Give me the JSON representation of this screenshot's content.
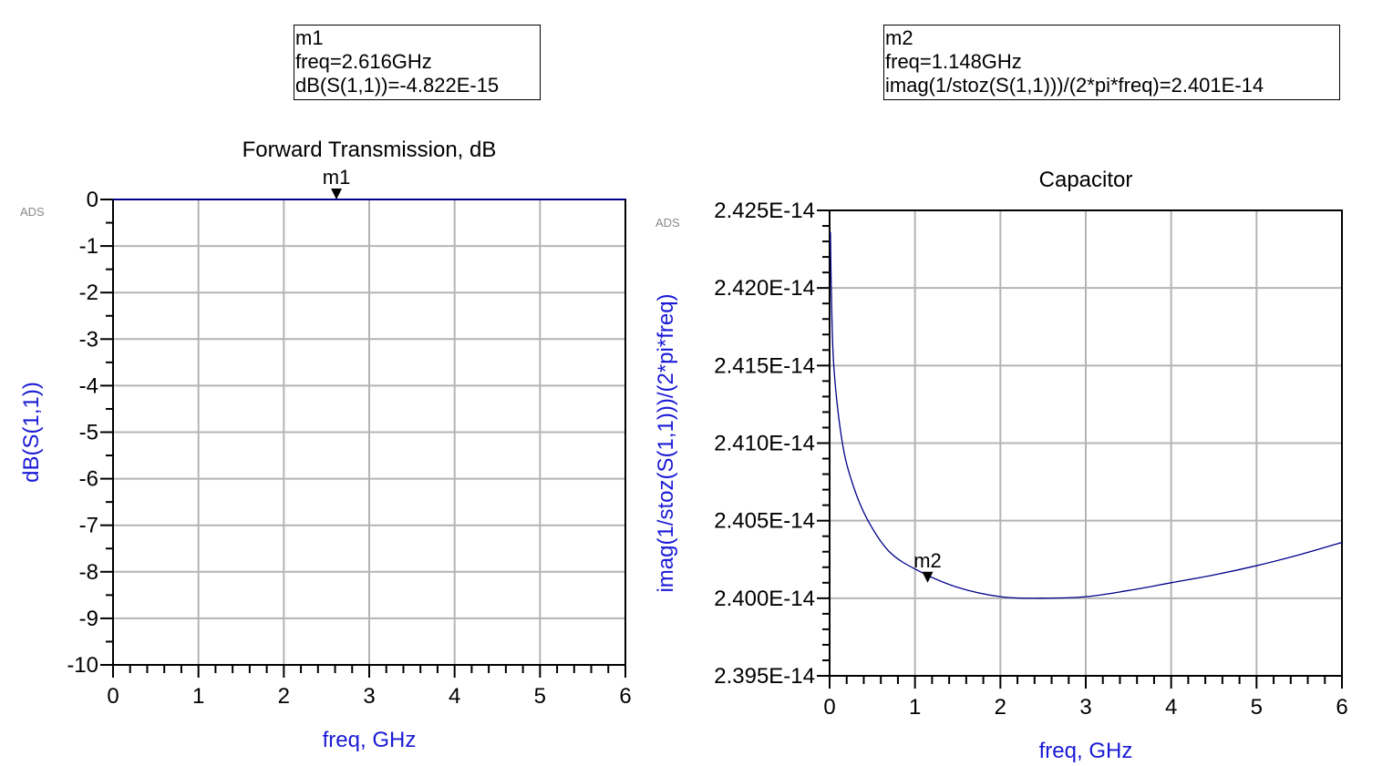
{
  "watermark": "ADS",
  "markers": [
    {
      "name": "m1",
      "lines": [
        "m1",
        "freq=2.616GHz",
        "dB(S(1,1))=-4.822E-15"
      ],
      "freq": 2.616,
      "value": -4.822e-15
    },
    {
      "name": "m2",
      "lines": [
        "m2",
        "freq=1.148GHz",
        "imag(1/stoz(S(1,1)))/(2*pi*freq)=2.401E-14"
      ],
      "freq": 1.148,
      "value": 2.401e-14
    }
  ],
  "colors": {
    "trace": "#00008b",
    "axis_label": "#1a1ad6",
    "grid": "#b4b4b4"
  },
  "chart_data": [
    {
      "type": "line",
      "title": "Forward Transmission, dB",
      "xlabel": "freq, GHz",
      "ylabel": "dB(S(1,1))",
      "xlim": [
        0,
        6
      ],
      "ylim": [
        -10,
        0
      ],
      "xticks": [
        "0",
        "1",
        "2",
        "3",
        "4",
        "5",
        "6"
      ],
      "yticks": [
        "0",
        "-1",
        "-2",
        "-3",
        "-4",
        "-5",
        "-6",
        "-7",
        "-8",
        "-9",
        "-10"
      ],
      "grid": true,
      "marker": "m1",
      "series": [
        {
          "x": [
            0,
            1,
            2,
            3,
            4,
            5,
            6
          ],
          "y": [
            0,
            0,
            0,
            0,
            0,
            0,
            0
          ]
        }
      ]
    },
    {
      "type": "line",
      "title": "Capacitor",
      "xlabel": "freq, GHz",
      "ylabel": "imag(1/stoz(S(1,1)))/(2*pi*freq)",
      "xlim": [
        0,
        6
      ],
      "ylim": [
        2.395e-14,
        2.425e-14
      ],
      "xticks": [
        "0",
        "1",
        "2",
        "3",
        "4",
        "5",
        "6"
      ],
      "yticks": [
        "2.425E-14",
        "2.420E-14",
        "2.415E-14",
        "2.410E-14",
        "2.405E-14",
        "2.400E-14",
        "2.395E-14"
      ],
      "grid": true,
      "marker": "m2",
      "series": [
        {
          "x": [
            0.01,
            0.02,
            0.05,
            0.15,
            0.28,
            0.45,
            0.7,
            1.03,
            1.5,
            2.0,
            2.45,
            3.0,
            3.5,
            4.0,
            4.5,
            5.0,
            5.5,
            6.0
          ],
          "y": [
            2.4236e-14,
            2.42e-14,
            2.4149e-14,
            2.41e-14,
            2.4072e-14,
            2.405e-14,
            2.403e-14,
            2.4018e-14,
            2.4007e-14,
            2.4001e-14,
            2.4e-14,
            2.4001e-14,
            2.4005e-14,
            2.401e-14,
            2.4015e-14,
            2.4021e-14,
            2.4028e-14,
            2.4036e-14
          ]
        }
      ]
    }
  ]
}
